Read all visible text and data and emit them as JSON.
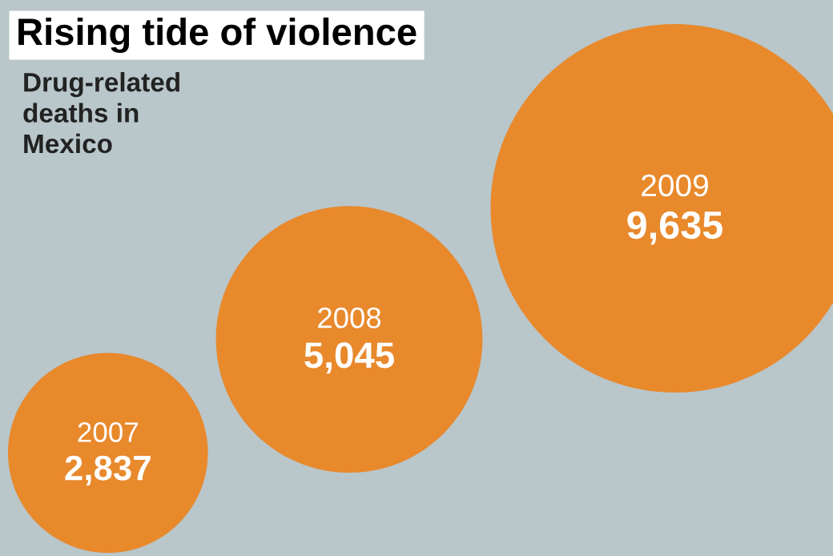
{
  "chart_data": {
    "type": "other",
    "title": "Rising tide of violence",
    "subtitle": "Drug-related\ndeaths in\nMexico",
    "categories": [
      "2007",
      "2008",
      "2009"
    ],
    "values": [
      2837,
      5045,
      9635
    ],
    "value_labels": [
      "2,837",
      "5,045",
      "9,635"
    ],
    "color": "#e8892c"
  }
}
